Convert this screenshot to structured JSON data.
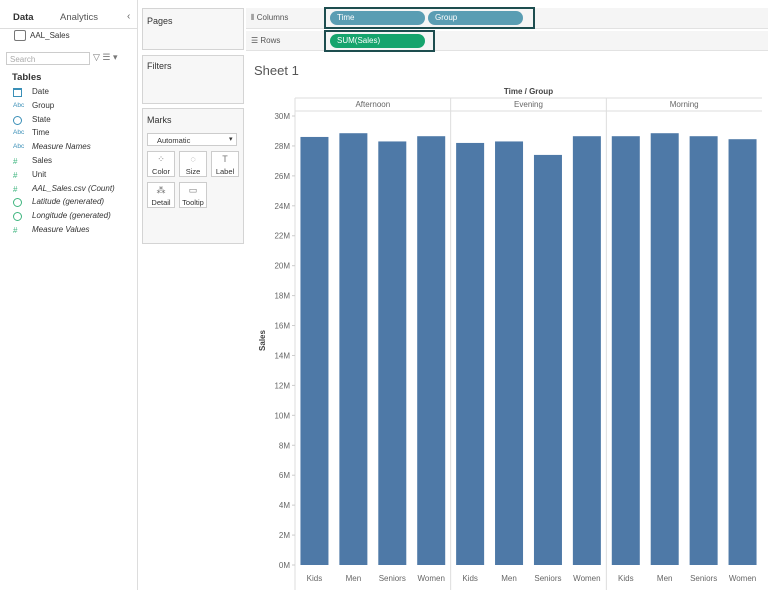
{
  "data_pane": {
    "tabs": [
      "Data",
      "Analytics"
    ],
    "source": "AAL_Sales",
    "search_placeholder": "Search",
    "section": "Tables",
    "fields": [
      {
        "type": "date",
        "name": "Date"
      },
      {
        "icon": "Abc",
        "name": "Group"
      },
      {
        "type": "geo",
        "name": "State"
      },
      {
        "icon": "Abc",
        "name": "Time"
      },
      {
        "icon": "Abc",
        "name": "Measure Names",
        "italic": true
      },
      {
        "icon": "#",
        "name": "Sales"
      },
      {
        "icon": "#",
        "name": "Unit"
      },
      {
        "icon": "#",
        "name": "AAL_Sales.csv (Count)",
        "italic": true
      },
      {
        "type": "geo",
        "name": "Latitude (generated)",
        "italic": true
      },
      {
        "type": "geo",
        "name": "Longitude (generated)",
        "italic": true
      },
      {
        "icon": "#",
        "name": "Measure Values",
        "italic": true
      }
    ]
  },
  "cards": {
    "pages": "Pages",
    "filters": "Filters",
    "marks": "Marks",
    "mark_type": "Automatic",
    "mark_buttons": [
      "Color",
      "Size",
      "Label",
      "Detail",
      "Tooltip"
    ]
  },
  "shelves": {
    "columns": {
      "label": "Columns",
      "pills": [
        "Time",
        "Group"
      ]
    },
    "rows": {
      "label": "Rows",
      "pills": [
        "SUM(Sales)"
      ]
    }
  },
  "sheet_title": "Sheet 1",
  "chart_data": {
    "type": "bar",
    "x_label": "Time / Group",
    "y_label": "Sales",
    "color": "#4e79a7",
    "groups": [
      {
        "name": "Afternoon",
        "categories": [
          "Kids",
          "Men",
          "Seniors",
          "Women"
        ],
        "values": [
          28600000,
          28850000,
          28300000,
          28650000
        ]
      },
      {
        "name": "Evening",
        "categories": [
          "Kids",
          "Men",
          "Seniors",
          "Women"
        ],
        "values": [
          28200000,
          28300000,
          27400000,
          28650000
        ]
      },
      {
        "name": "Morning",
        "categories": [
          "Kids",
          "Men",
          "Seniors",
          "Women"
        ],
        "values": [
          28650000,
          28850000,
          28650000,
          28450000
        ]
      }
    ],
    "ylim": [
      0,
      30000000
    ],
    "yticks": [
      {
        "value": 0,
        "label": "0M"
      },
      {
        "value": 2000000,
        "label": "2M"
      },
      {
        "value": 4000000,
        "label": "4M"
      },
      {
        "value": 6000000,
        "label": "6M"
      },
      {
        "value": 8000000,
        "label": "8M"
      },
      {
        "value": 10000000,
        "label": "10M"
      },
      {
        "value": 12000000,
        "label": "12M"
      },
      {
        "value": 14000000,
        "label": "14M"
      },
      {
        "value": 16000000,
        "label": "16M"
      },
      {
        "value": 18000000,
        "label": "18M"
      },
      {
        "value": 20000000,
        "label": "20M"
      },
      {
        "value": 22000000,
        "label": "22M"
      },
      {
        "value": 24000000,
        "label": "24M"
      },
      {
        "value": 26000000,
        "label": "26M"
      },
      {
        "value": 28000000,
        "label": "28M"
      },
      {
        "value": 30000000,
        "label": "30M"
      }
    ]
  }
}
